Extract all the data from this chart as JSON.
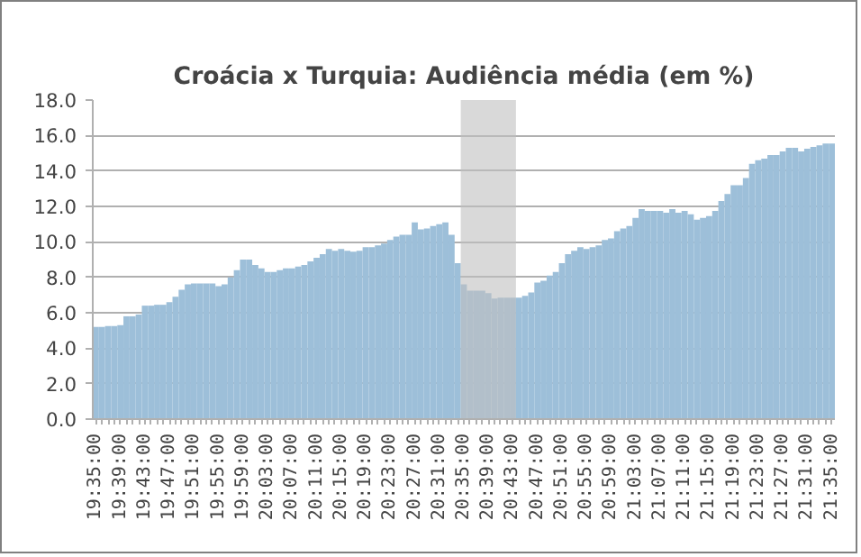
{
  "chart_data": {
    "type": "bar",
    "title": "Croácia x Turquia: Audiência média (em %)",
    "categories": [
      "19:35:00",
      null,
      null,
      null,
      "19:39:00",
      null,
      null,
      null,
      "19:43:00",
      null,
      null,
      null,
      "19:47:00",
      null,
      null,
      null,
      "19:51:00",
      null,
      null,
      null,
      "19:55:00",
      null,
      null,
      null,
      "19:59:00",
      null,
      null,
      null,
      "20:03:00",
      null,
      null,
      null,
      "20:07:00",
      null,
      null,
      null,
      "20:11:00",
      null,
      null,
      null,
      "20:15:00",
      null,
      null,
      null,
      "20:19:00",
      null,
      null,
      null,
      "20:23:00",
      null,
      null,
      null,
      "20:27:00",
      null,
      null,
      null,
      "20:31:00",
      null,
      null,
      null,
      "20:35:00",
      null,
      null,
      null,
      "20:39:00",
      null,
      null,
      null,
      "20:43:00",
      null,
      null,
      null,
      "20:47:00",
      null,
      null,
      null,
      "20:51:00",
      null,
      null,
      null,
      "20:55:00",
      null,
      null,
      null,
      "20:59:00",
      null,
      null,
      null,
      "21:03:00",
      null,
      null,
      null,
      "21:07:00",
      null,
      null,
      null,
      "21:11:00",
      null,
      null,
      null,
      "21:15:00",
      null,
      null,
      null,
      "21:19:00",
      null,
      null,
      null,
      "21:23:00",
      null,
      null,
      null,
      "21:27:00",
      null,
      null,
      null,
      "21:31:00",
      null,
      null,
      null,
      "21:35:00"
    ],
    "values": [
      5.2,
      5.2,
      5.25,
      5.25,
      5.3,
      5.8,
      5.8,
      5.9,
      6.4,
      6.4,
      6.45,
      6.45,
      6.6,
      6.9,
      7.3,
      7.6,
      7.65,
      7.65,
      7.65,
      7.65,
      7.5,
      7.6,
      8.0,
      8.4,
      9.0,
      9.0,
      8.7,
      8.5,
      8.3,
      8.3,
      8.4,
      8.5,
      8.5,
      8.6,
      8.7,
      8.9,
      9.1,
      9.3,
      9.6,
      9.5,
      9.6,
      9.5,
      9.45,
      9.5,
      9.7,
      9.7,
      9.8,
      9.9,
      10.1,
      10.3,
      10.4,
      10.4,
      11.1,
      10.7,
      10.75,
      10.9,
      11.0,
      11.1,
      10.4,
      8.8,
      7.6,
      7.25,
      7.25,
      7.25,
      7.1,
      6.8,
      6.85,
      6.85,
      6.85,
      6.85,
      6.95,
      7.15,
      7.7,
      7.8,
      8.1,
      8.3,
      8.8,
      9.3,
      9.5,
      9.7,
      9.6,
      9.7,
      9.8,
      10.1,
      10.2,
      10.6,
      10.75,
      10.9,
      11.35,
      11.85,
      11.75,
      11.75,
      11.75,
      11.65,
      11.85,
      11.65,
      11.75,
      11.55,
      11.25,
      11.35,
      11.45,
      11.75,
      12.3,
      12.7,
      13.2,
      13.2,
      13.6,
      14.4,
      14.6,
      14.7,
      14.9,
      14.9,
      15.1,
      15.3,
      15.3,
      15.1,
      15.25,
      15.35,
      15.45,
      15.55,
      15.55
    ],
    "color": "#9dbfd9",
    "ylim": [
      0,
      18
    ],
    "yticks": [
      {
        "value": 0,
        "label": "0.0"
      },
      {
        "value": 2,
        "label": "2.0"
      },
      {
        "value": 4,
        "label": "4.0"
      },
      {
        "value": 6,
        "label": "6.0"
      },
      {
        "value": 8,
        "label": "8.0"
      },
      {
        "value": 10,
        "label": "10.0"
      },
      {
        "value": 12,
        "label": "12.0"
      },
      {
        "value": 14,
        "label": "14.0"
      },
      {
        "value": 16,
        "label": "16.0"
      },
      {
        "value": 18,
        "label": "18.0"
      }
    ],
    "grid": "y",
    "bands": [
      {
        "axis": "x",
        "from": "20:35:00",
        "to": "20:43:00",
        "color": "#bfbfbf"
      }
    ]
  }
}
